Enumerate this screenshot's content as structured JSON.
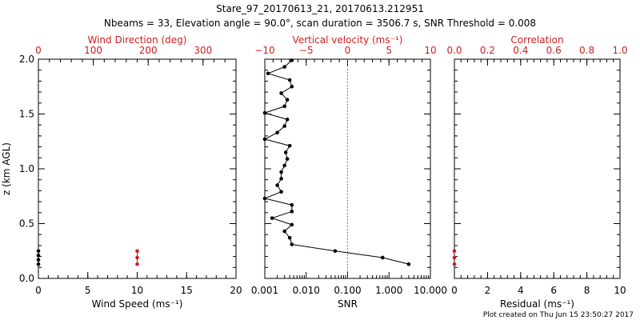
{
  "title_line1": "Stare_97_20170613_21, 20170613.212951",
  "title_line2": "Nbeams = 33, Elevation angle = 90.0°, scan duration = 3506.7 s, SNR Threshold = 0.008",
  "footer": "Plot created on Thu Jun 15 23:50:27 2017",
  "colors": {
    "axis": "#000000",
    "accent": "#cc1f1f",
    "points": "#000000"
  },
  "chart_data": [
    {
      "type": "scatter",
      "panel": "left",
      "ylabel": "z (km AGL)",
      "ylim": [
        0,
        2.0
      ],
      "yticks": [
        "0.0",
        "0.5",
        "1.0",
        "1.5",
        "2.0"
      ],
      "yticks_values": [
        0,
        0.5,
        1.0,
        1.5,
        2.0
      ],
      "xlabel_bottom": "Wind Speed (ms⁻¹)",
      "xlim_bottom": [
        0,
        20
      ],
      "xticks_bottom": [
        "0",
        "5",
        "10",
        "15",
        "20"
      ],
      "xticks_bottom_values": [
        0,
        5,
        10,
        15,
        20
      ],
      "xlabel_top": "Wind Direction (deg)",
      "xlim_top": [
        0,
        360
      ],
      "xticks_top": [
        "0",
        "100",
        "200",
        "300"
      ],
      "xticks_top_values": [
        0,
        100,
        200,
        300
      ],
      "series": [
        {
          "name": "Wind Speed",
          "color": "#000000",
          "points": [
            [
              0,
              0.13
            ],
            [
              0,
              0.17
            ],
            [
              0,
              0.21
            ],
            [
              0,
              0.25
            ]
          ]
        },
        {
          "name": "Wind Direction",
          "color": "#cc1f1f",
          "points": [
            [
              180,
              0.13
            ],
            [
              180,
              0.19
            ],
            [
              180,
              0.25
            ]
          ]
        }
      ]
    },
    {
      "type": "line",
      "panel": "middle",
      "xlabel_bottom": "SNR",
      "xscale_bottom": "log",
      "xlim_bottom": [
        0.001,
        10
      ],
      "xticks_bottom": [
        "0.001",
        "0.010",
        "0.100",
        "1.000",
        "10.000"
      ],
      "xticks_bottom_values": [
        0.001,
        0.01,
        0.1,
        1,
        10
      ],
      "xlabel_top": "Vertical velocity (ms⁻¹)",
      "xlim_top": [
        -10,
        10
      ],
      "xticks_top": [
        "−10",
        "−5",
        "0",
        "5",
        "10"
      ],
      "xticks_top_values": [
        -10,
        -5,
        0,
        5,
        10
      ],
      "reference_line": {
        "axis": "x_top",
        "value": 0,
        "style": "dotted",
        "color": "#cc1f1f"
      },
      "series": [
        {
          "name": "SNR",
          "color": "#000000",
          "points": [
            [
              3.0,
              0.13
            ],
            [
              0.7,
              0.19
            ],
            [
              0.05,
              0.25
            ],
            [
              0.0045,
              0.31
            ],
            [
              0.004,
              0.37
            ],
            [
              0.003,
              0.43
            ],
            [
              0.0045,
              0.49
            ],
            [
              0.0015,
              0.55
            ],
            [
              0.0045,
              0.61
            ],
            [
              0.0045,
              0.67
            ],
            [
              0.0008,
              0.73
            ],
            [
              0.0025,
              0.79
            ],
            [
              0.002,
              0.85
            ],
            [
              0.0025,
              0.91
            ],
            [
              0.0025,
              0.97
            ],
            [
              0.003,
              1.03
            ],
            [
              0.0035,
              1.09
            ],
            [
              0.0032,
              1.15
            ],
            [
              0.004,
              1.21
            ],
            [
              0.0008,
              1.27
            ],
            [
              0.002,
              1.33
            ],
            [
              0.003,
              1.39
            ],
            [
              0.0035,
              1.45
            ],
            [
              0.0008,
              1.51
            ],
            [
              0.003,
              1.57
            ],
            [
              0.0035,
              1.63
            ],
            [
              0.0025,
              1.69
            ],
            [
              0.0045,
              1.75
            ],
            [
              0.004,
              1.81
            ],
            [
              0.0012,
              1.87
            ],
            [
              0.003,
              1.93
            ],
            [
              0.0045,
              1.99
            ]
          ]
        }
      ]
    },
    {
      "type": "scatter",
      "panel": "right",
      "xlabel_bottom": "Residual (ms⁻¹)",
      "xlim_bottom": [
        0,
        10
      ],
      "xticks_bottom": [
        "0",
        "2",
        "4",
        "6",
        "8",
        "10"
      ],
      "xticks_bottom_values": [
        0,
        2,
        4,
        6,
        8,
        10
      ],
      "xlabel_top": "Correlation",
      "xlim_top": [
        0,
        1.0
      ],
      "xticks_top": [
        "0.0",
        "0.2",
        "0.4",
        "0.6",
        "0.8",
        "1.0"
      ],
      "xticks_top_values": [
        0,
        0.2,
        0.4,
        0.6,
        0.8,
        1.0
      ],
      "series": [
        {
          "name": "Correlation",
          "color": "#cc1f1f",
          "points": [
            [
              0,
              0.13
            ],
            [
              0,
              0.19
            ],
            [
              0,
              0.25
            ]
          ]
        }
      ]
    }
  ]
}
